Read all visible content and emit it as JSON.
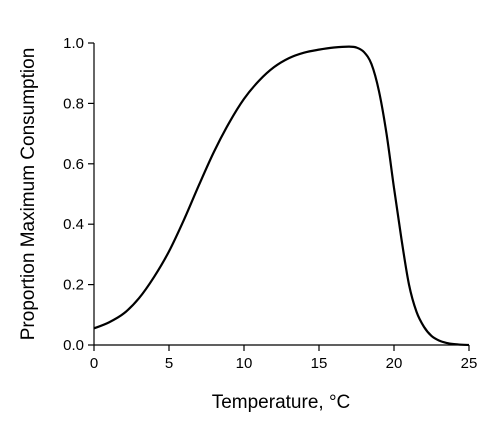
{
  "chart_data": {
    "type": "line",
    "title": "",
    "xlabel": "Temperature, °C",
    "ylabel": "Proportion Maximum Consumption",
    "xlim": [
      0,
      25
    ],
    "ylim": [
      0,
      1.0
    ],
    "xticks": [
      0,
      5,
      10,
      15,
      20,
      25
    ],
    "xtick_labels": [
      "0",
      "5",
      "10",
      "15",
      "20",
      "25"
    ],
    "yticks": [
      0,
      0.2,
      0.4,
      0.6,
      0.8,
      1.0
    ],
    "ytick_labels": [
      "0.0",
      "0.2",
      "0.4",
      "0.6",
      "0.8",
      "1.0"
    ],
    "grid": false,
    "legend": "none",
    "series": [
      {
        "color": "#000000",
        "x": [
          0,
          1,
          2,
          3,
          4,
          5,
          6,
          7,
          8,
          9,
          10,
          11,
          12,
          13,
          14,
          15,
          16,
          17,
          17.5,
          18,
          18.5,
          19,
          19.5,
          20,
          20.5,
          21,
          21.5,
          22,
          22.5,
          23,
          23.5,
          24,
          24.5,
          25
        ],
        "y": [
          0.055,
          0.075,
          0.105,
          0.155,
          0.225,
          0.31,
          0.415,
          0.53,
          0.64,
          0.735,
          0.815,
          0.875,
          0.92,
          0.95,
          0.968,
          0.978,
          0.985,
          0.988,
          0.985,
          0.97,
          0.93,
          0.84,
          0.7,
          0.52,
          0.35,
          0.2,
          0.11,
          0.06,
          0.03,
          0.015,
          0.007,
          0.003,
          0.001,
          0.0
        ]
      }
    ]
  }
}
